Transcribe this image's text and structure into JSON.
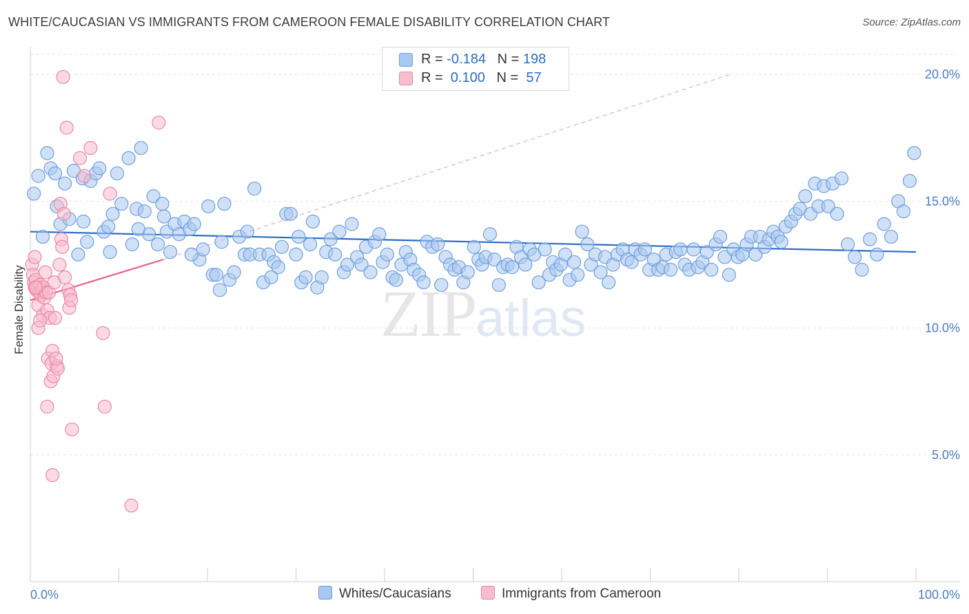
{
  "header": {
    "title": "WHITE/CAUCASIAN VS IMMIGRANTS FROM CAMEROON FEMALE DISABILITY CORRELATION CHART",
    "source": "Source: ZipAtlas.com"
  },
  "watermark": {
    "zip": "ZIP",
    "atlas": "atlas"
  },
  "legend_stats": [
    {
      "r_label": "R = ",
      "r_value": "-0.184",
      "n_label": "N = ",
      "n_value": "198",
      "color": "#a9c8f0",
      "border": "#6f9fdc"
    },
    {
      "r_label": "R = ",
      "r_value": " 0.100",
      "n_label": "N = ",
      "n_value": " 57",
      "color": "#f7bccd",
      "border": "#ec87a6"
    }
  ],
  "chart_data": {
    "type": "scatter",
    "title": "WHITE/CAUCASIAN VS IMMIGRANTS FROM CAMEROON FEMALE DISABILITY CORRELATION CHART",
    "ylabel": "Female Disability",
    "xlabel": "",
    "x_tick_labels": [
      "0.0%",
      "100.0%"
    ],
    "y_tick_labels": [
      "5.0%",
      "10.0%",
      "15.0%",
      "20.0%"
    ],
    "y_ticks": [
      5,
      10,
      15,
      20
    ],
    "xlim": [
      0,
      100
    ],
    "ylim": [
      0,
      20.9
    ],
    "grid": true,
    "legend_position": "bottom",
    "series": [
      {
        "name": "Whites/Caucasians",
        "color": "#6f9fdc",
        "fill": "#a9c8f0",
        "trend": {
          "x": [
            0,
            100
          ],
          "y": [
            13.8,
            13.0
          ],
          "color": "#2a6bc8"
        },
        "points": [
          [
            0.4,
            15.3
          ],
          [
            0.9,
            16.0
          ],
          [
            1.9,
            16.9
          ],
          [
            2.3,
            16.3
          ],
          [
            2.8,
            16.1
          ],
          [
            3.4,
            14.1
          ],
          [
            3.9,
            15.7
          ],
          [
            4.4,
            14.3
          ],
          [
            4.9,
            16.2
          ],
          [
            5.4,
            12.9
          ],
          [
            5.9,
            15.9
          ],
          [
            6.4,
            13.4
          ],
          [
            6.8,
            15.8
          ],
          [
            7.4,
            16.1
          ],
          [
            7.8,
            16.3
          ],
          [
            8.3,
            13.8
          ],
          [
            8.8,
            14.0
          ],
          [
            9.3,
            14.5
          ],
          [
            9.8,
            16.1
          ],
          [
            10.3,
            14.9
          ],
          [
            11.1,
            16.7
          ],
          [
            11.5,
            13.3
          ],
          [
            12.0,
            14.7
          ],
          [
            12.5,
            17.1
          ],
          [
            12.9,
            14.6
          ],
          [
            13.4,
            13.7
          ],
          [
            13.9,
            15.2
          ],
          [
            14.4,
            13.3
          ],
          [
            14.9,
            14.9
          ],
          [
            15.4,
            13.8
          ],
          [
            15.8,
            13.0
          ],
          [
            16.3,
            14.1
          ],
          [
            16.8,
            13.7
          ],
          [
            17.4,
            14.2
          ],
          [
            18.0,
            13.9
          ],
          [
            18.5,
            14.1
          ],
          [
            19.1,
            12.7
          ],
          [
            19.5,
            13.1
          ],
          [
            20.1,
            14.8
          ],
          [
            20.6,
            12.1
          ],
          [
            21.0,
            12.1
          ],
          [
            21.4,
            11.5
          ],
          [
            21.9,
            14.9
          ],
          [
            22.5,
            11.9
          ],
          [
            23.0,
            12.2
          ],
          [
            23.6,
            13.6
          ],
          [
            24.2,
            12.9
          ],
          [
            24.8,
            12.9
          ],
          [
            25.3,
            15.5
          ],
          [
            25.9,
            12.9
          ],
          [
            26.3,
            11.8
          ],
          [
            26.9,
            12.9
          ],
          [
            27.5,
            12.6
          ],
          [
            28.0,
            12.4
          ],
          [
            28.4,
            13.2
          ],
          [
            28.9,
            14.5
          ],
          [
            29.4,
            14.5
          ],
          [
            30.0,
            12.9
          ],
          [
            30.6,
            11.8
          ],
          [
            31.1,
            12.0
          ],
          [
            31.6,
            13.3
          ],
          [
            31.9,
            14.2
          ],
          [
            32.4,
            11.6
          ],
          [
            32.9,
            12.0
          ],
          [
            33.4,
            13.0
          ],
          [
            33.9,
            13.5
          ],
          [
            34.4,
            12.9
          ],
          [
            34.9,
            13.8
          ],
          [
            35.4,
            12.2
          ],
          [
            35.8,
            12.5
          ],
          [
            36.3,
            14.1
          ],
          [
            36.9,
            12.8
          ],
          [
            37.4,
            12.5
          ],
          [
            37.9,
            13.2
          ],
          [
            38.4,
            12.2
          ],
          [
            38.9,
            13.4
          ],
          [
            39.4,
            13.7
          ],
          [
            39.8,
            12.6
          ],
          [
            40.3,
            12.9
          ],
          [
            40.9,
            12.0
          ],
          [
            41.3,
            11.9
          ],
          [
            41.9,
            12.5
          ],
          [
            42.4,
            13.0
          ],
          [
            42.9,
            12.7
          ],
          [
            43.3,
            12.3
          ],
          [
            43.9,
            12.1
          ],
          [
            44.4,
            11.8
          ],
          [
            44.8,
            13.4
          ],
          [
            45.4,
            13.2
          ],
          [
            46.0,
            13.3
          ],
          [
            46.4,
            11.7
          ],
          [
            46.9,
            12.8
          ],
          [
            47.4,
            12.5
          ],
          [
            47.9,
            12.3
          ],
          [
            48.4,
            12.4
          ],
          [
            48.9,
            11.8
          ],
          [
            49.4,
            12.2
          ],
          [
            50.1,
            13.2
          ],
          [
            50.6,
            12.7
          ],
          [
            51.0,
            12.5
          ],
          [
            51.4,
            12.8
          ],
          [
            51.9,
            13.7
          ],
          [
            52.4,
            12.7
          ],
          [
            52.9,
            11.7
          ],
          [
            53.4,
            12.4
          ],
          [
            53.9,
            12.5
          ],
          [
            54.4,
            12.4
          ],
          [
            54.9,
            13.2
          ],
          [
            55.4,
            12.8
          ],
          [
            55.9,
            12.5
          ],
          [
            56.4,
            13.1
          ],
          [
            56.9,
            12.9
          ],
          [
            57.4,
            11.8
          ],
          [
            58.1,
            13.1
          ],
          [
            58.6,
            12.1
          ],
          [
            59.0,
            12.6
          ],
          [
            59.4,
            12.3
          ],
          [
            59.9,
            12.5
          ],
          [
            60.4,
            12.9
          ],
          [
            60.9,
            11.9
          ],
          [
            61.4,
            12.6
          ],
          [
            61.8,
            12.1
          ],
          [
            62.3,
            13.8
          ],
          [
            62.9,
            13.3
          ],
          [
            63.3,
            12.5
          ],
          [
            63.8,
            12.9
          ],
          [
            64.4,
            12.2
          ],
          [
            64.9,
            12.8
          ],
          [
            65.3,
            11.8
          ],
          [
            65.8,
            12.5
          ],
          [
            66.3,
            12.9
          ],
          [
            66.9,
            13.1
          ],
          [
            67.4,
            12.7
          ],
          [
            67.9,
            12.6
          ],
          [
            68.3,
            13.1
          ],
          [
            68.9,
            12.9
          ],
          [
            69.4,
            13.1
          ],
          [
            69.9,
            12.3
          ],
          [
            70.4,
            12.7
          ],
          [
            70.9,
            12.3
          ],
          [
            71.4,
            12.4
          ],
          [
            71.8,
            12.9
          ],
          [
            72.3,
            12.3
          ],
          [
            72.9,
            13.0
          ],
          [
            73.4,
            13.1
          ],
          [
            73.9,
            12.5
          ],
          [
            74.4,
            12.3
          ],
          [
            74.9,
            13.1
          ],
          [
            75.4,
            12.4
          ],
          [
            75.9,
            12.6
          ],
          [
            76.4,
            13.0
          ],
          [
            76.9,
            12.3
          ],
          [
            77.4,
            13.3
          ],
          [
            77.9,
            13.6
          ],
          [
            78.4,
            12.8
          ],
          [
            78.9,
            12.1
          ],
          [
            79.4,
            13.1
          ],
          [
            79.9,
            12.8
          ],
          [
            80.4,
            12.9
          ],
          [
            80.9,
            13.3
          ],
          [
            81.4,
            13.6
          ],
          [
            81.9,
            12.9
          ],
          [
            82.4,
            13.6
          ],
          [
            82.9,
            13.2
          ],
          [
            83.4,
            13.5
          ],
          [
            83.9,
            13.8
          ],
          [
            84.4,
            13.6
          ],
          [
            84.8,
            13.4
          ],
          [
            85.3,
            14.0
          ],
          [
            85.9,
            14.2
          ],
          [
            86.4,
            14.5
          ],
          [
            86.9,
            14.7
          ],
          [
            87.5,
            15.2
          ],
          [
            88.1,
            14.5
          ],
          [
            88.6,
            15.7
          ],
          [
            89.0,
            14.8
          ],
          [
            89.6,
            15.6
          ],
          [
            90.1,
            14.8
          ],
          [
            90.6,
            15.7
          ],
          [
            91.1,
            14.5
          ],
          [
            91.6,
            15.9
          ],
          [
            92.3,
            13.3
          ],
          [
            93.1,
            12.8
          ],
          [
            93.9,
            12.3
          ],
          [
            94.8,
            13.5
          ],
          [
            95.6,
            12.9
          ],
          [
            96.4,
            14.1
          ],
          [
            97.2,
            13.6
          ],
          [
            98.0,
            15.0
          ],
          [
            98.6,
            14.6
          ],
          [
            99.3,
            15.8
          ],
          [
            99.8,
            16.9
          ],
          [
            1.4,
            13.6
          ],
          [
            3.0,
            14.8
          ],
          [
            6.0,
            14.2
          ],
          [
            9.0,
            13.0
          ],
          [
            12.2,
            13.9
          ],
          [
            15.1,
            14.4
          ],
          [
            18.2,
            12.9
          ],
          [
            21.6,
            13.4
          ],
          [
            24.5,
            13.8
          ],
          [
            27.2,
            12.0
          ],
          [
            30.3,
            13.6
          ]
        ]
      },
      {
        "name": "Immigrants from Cameroon",
        "color": "#ec87a6",
        "fill": "#f7bccd",
        "trend": {
          "x": [
            0,
            15
          ],
          "y": [
            11.1,
            12.7
          ],
          "color": "#e8608b"
        },
        "trend_extension": {
          "x": [
            15,
            79
          ],
          "y": [
            12.7,
            20.0
          ]
        },
        "points": [
          [
            0.2,
            12.5
          ],
          [
            0.3,
            12.1
          ],
          [
            0.4,
            11.8
          ],
          [
            0.5,
            11.6
          ],
          [
            0.6,
            11.9
          ],
          [
            0.7,
            11.5
          ],
          [
            0.8,
            11.6
          ],
          [
            0.9,
            10.9
          ],
          [
            1.0,
            11.4
          ],
          [
            1.1,
            11.7
          ],
          [
            1.2,
            11.3
          ],
          [
            1.3,
            11.5
          ],
          [
            1.4,
            10.5
          ],
          [
            1.5,
            11.6
          ],
          [
            1.6,
            11.2
          ],
          [
            1.7,
            12.2
          ],
          [
            1.8,
            11.4
          ],
          [
            1.9,
            10.7
          ],
          [
            2.0,
            8.8
          ],
          [
            2.1,
            11.4
          ],
          [
            2.2,
            10.4
          ],
          [
            2.3,
            7.9
          ],
          [
            2.4,
            8.6
          ],
          [
            2.5,
            9.1
          ],
          [
            2.6,
            8.1
          ],
          [
            2.7,
            11.8
          ],
          [
            2.8,
            10.4
          ],
          [
            3.0,
            8.5
          ],
          [
            3.1,
            8.4
          ],
          [
            3.3,
            12.5
          ],
          [
            3.4,
            14.9
          ],
          [
            3.5,
            13.5
          ],
          [
            3.6,
            13.2
          ],
          [
            3.8,
            14.5
          ],
          [
            3.9,
            12.0
          ],
          [
            4.1,
            17.9
          ],
          [
            4.3,
            11.5
          ],
          [
            4.4,
            10.8
          ],
          [
            4.5,
            11.3
          ],
          [
            4.6,
            11.1
          ],
          [
            5.6,
            16.7
          ],
          [
            6.1,
            16.0
          ],
          [
            6.8,
            17.1
          ],
          [
            8.2,
            9.8
          ],
          [
            8.4,
            6.9
          ],
          [
            9.0,
            15.3
          ],
          [
            11.4,
            3.0
          ],
          [
            14.5,
            18.1
          ],
          [
            3.7,
            19.9
          ],
          [
            2.5,
            4.2
          ],
          [
            4.7,
            6.0
          ],
          [
            1.9,
            6.9
          ],
          [
            0.9,
            10.0
          ],
          [
            1.1,
            10.3
          ],
          [
            2.9,
            8.8
          ],
          [
            0.6,
            11.6
          ],
          [
            0.5,
            12.8
          ]
        ]
      }
    ]
  },
  "bottom_legend": {
    "items": [
      {
        "label": "Whites/Caucasians",
        "color": "#a9c8f0",
        "border": "#6f9fdc"
      },
      {
        "label": "Immigrants from Cameroon",
        "color": "#f7bccd",
        "border": "#ec87a6"
      }
    ]
  }
}
